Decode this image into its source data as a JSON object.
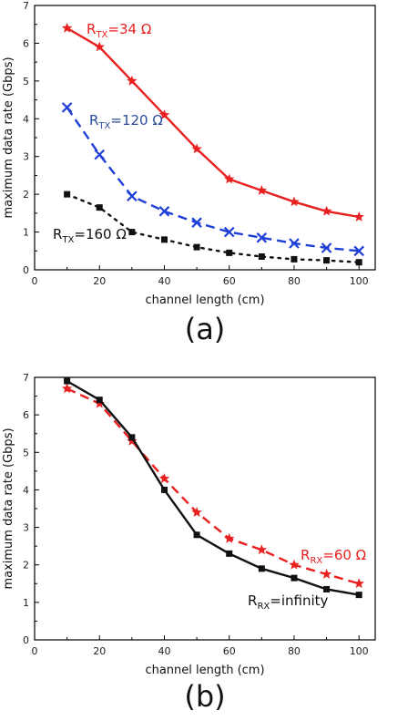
{
  "chart_data": [
    {
      "type": "line",
      "panel_label": "(a)",
      "xlabel": "channel length (cm)",
      "ylabel": "maximum data rate (Gbps)",
      "xlim": [
        0,
        105
      ],
      "ylim": [
        0,
        7
      ],
      "xticks": [
        0,
        20,
        40,
        60,
        80,
        100
      ],
      "yticks": [
        0,
        1,
        2,
        3,
        4,
        5,
        6,
        7
      ],
      "grid": false,
      "x": [
        10,
        20,
        30,
        40,
        50,
        60,
        70,
        80,
        90,
        100
      ],
      "series": [
        {
          "label_parts": {
            "main": "R",
            "sub": "TX",
            "rest": "=34 Ω"
          },
          "color": "#e8201f",
          "dash": "solid",
          "marker": "star",
          "values": [
            6.4,
            5.9,
            5.0,
            4.1,
            3.2,
            2.4,
            2.1,
            1.8,
            1.55,
            1.4
          ]
        },
        {
          "label_parts": {
            "main": "R",
            "sub": "TX",
            "rest": "=120 Ω"
          },
          "color": "#1f3fd8",
          "label_color": "#2a4a9a",
          "dash": "dashed",
          "marker": "x",
          "values": [
            4.3,
            3.05,
            1.95,
            1.55,
            1.25,
            1.0,
            0.85,
            0.7,
            0.58,
            0.5
          ]
        },
        {
          "label_parts": {
            "main": "R",
            "sub": "TX",
            "rest": "=160 Ω"
          },
          "color": "#111111",
          "dash": "dotted",
          "marker": "square",
          "values": [
            2.0,
            1.65,
            1.0,
            0.8,
            0.6,
            0.45,
            0.35,
            0.28,
            0.25,
            0.2
          ]
        }
      ]
    },
    {
      "type": "line",
      "panel_label": "(b)",
      "xlabel": "channel length (cm)",
      "ylabel": "maximum data rate (Gbps)",
      "xlim": [
        0,
        105
      ],
      "ylim": [
        0,
        7
      ],
      "xticks": [
        0,
        20,
        40,
        60,
        80,
        100
      ],
      "yticks": [
        0,
        1,
        2,
        3,
        4,
        5,
        6,
        7
      ],
      "grid": false,
      "x": [
        10,
        20,
        30,
        40,
        50,
        60,
        70,
        80,
        90,
        100
      ],
      "series": [
        {
          "label_parts": {
            "main": "R",
            "sub": "RX",
            "rest": "=60 Ω"
          },
          "color": "#e8201f",
          "dash": "dashed",
          "marker": "star",
          "values": [
            6.7,
            6.3,
            5.3,
            4.3,
            3.4,
            2.7,
            2.4,
            2.0,
            1.75,
            1.5
          ]
        },
        {
          "label_parts": {
            "main": "R",
            "sub": "RX",
            "rest": "=infinity"
          },
          "color": "#111111",
          "dash": "solid",
          "marker": "square",
          "values": [
            6.9,
            6.4,
            5.4,
            4.0,
            2.8,
            2.3,
            1.9,
            1.65,
            1.35,
            1.2
          ]
        }
      ]
    }
  ]
}
